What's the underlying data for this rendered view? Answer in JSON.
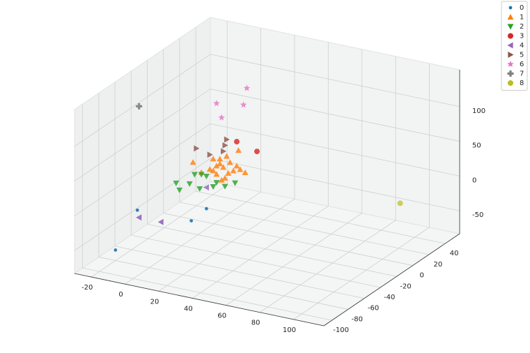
{
  "chart_data": {
    "type": "scatter3d",
    "xlim": [
      -30,
      118
    ],
    "ylim": [
      -110,
      58
    ],
    "zlim": [
      -83,
      153
    ],
    "xticks": [
      -20,
      0,
      20,
      40,
      60,
      80,
      100
    ],
    "yticks": [
      -100,
      -80,
      -60,
      -40,
      -20,
      0,
      20,
      40
    ],
    "zticks": [
      -50,
      0,
      50,
      100
    ],
    "grid": true,
    "legend": "upper right",
    "series": [
      {
        "name": "0",
        "color": "#1f77b4",
        "marker": "point",
        "x": [
          -9,
          -22,
          23,
          32
        ],
        "y": [
          -76,
          -76,
          -76,
          -76
        ],
        "z": [
          -8,
          -72,
          -7,
          15
        ]
      },
      {
        "name": "1",
        "color": "#ff7f0e",
        "marker": "triangle-up",
        "x": [
          27,
          20,
          12,
          16,
          14,
          18,
          22,
          10,
          24,
          28,
          31,
          5,
          0,
          14,
          19,
          26,
          16,
          21,
          12,
          17
        ],
        "y": [
          -26,
          -26,
          -26,
          -26,
          -26,
          -26,
          -26,
          -26,
          -26,
          -26,
          -26,
          -26,
          -26,
          -26,
          -26,
          -26,
          -26,
          -26,
          -26,
          -26
        ],
        "z": [
          57,
          45,
          37,
          39,
          28,
          28,
          37,
          21,
          26,
          30,
          27,
          14,
          26,
          16,
          13,
          34,
          32,
          21,
          20,
          9
        ]
      },
      {
        "name": "2",
        "color": "#2ca02c",
        "marker": "triangle-down",
        "x": [
          -8,
          -2,
          4,
          -10,
          8,
          1,
          5,
          14,
          12,
          19,
          25
        ],
        "y": [
          -26,
          -26,
          -26,
          -26,
          -26,
          -26,
          -26,
          -26,
          -26,
          -26,
          -26
        ],
        "z": [
          -18,
          -6,
          -10,
          -9,
          10,
          9,
          11,
          4,
          -3,
          1,
          9
        ]
      },
      {
        "name": "3",
        "color": "#d62728",
        "marker": "circle",
        "x": [
          38,
          26
        ],
        "y": [
          -26,
          -26
        ],
        "z": [
          61,
          69
        ]
      },
      {
        "name": "4",
        "color": "#9467bd",
        "marker": "triangle-left",
        "x": [
          5,
          -8,
          8
        ],
        "y": [
          -76,
          -76,
          -26
        ],
        "z": [
          -18,
          -18,
          -6
        ]
      },
      {
        "name": "5",
        "color": "#8c564b",
        "marker": "triangle-right",
        "x": [
          2,
          20,
          18,
          10,
          19
        ],
        "y": [
          -26,
          -26,
          -26,
          -26,
          -26
        ],
        "z": [
          47,
          69,
          51,
          42,
          60
        ]
      },
      {
        "name": "6",
        "color": "#e377c2",
        "marker": "star",
        "x": [
          32,
          30,
          14,
          17
        ],
        "y": [
          -26,
          -26,
          -26,
          -26
        ],
        "z": [
          149,
          124,
          118,
          99
        ]
      },
      {
        "name": "7",
        "color": "#7f7f7f",
        "marker": "plus",
        "x": [
          -8
        ],
        "y": [
          -76
        ],
        "z": [
          142
        ]
      },
      {
        "name": "8",
        "color": "#bcbd22",
        "marker": "circle",
        "x": [
          99
        ],
        "y": [
          24
        ],
        "z": [
          -22
        ]
      }
    ]
  }
}
